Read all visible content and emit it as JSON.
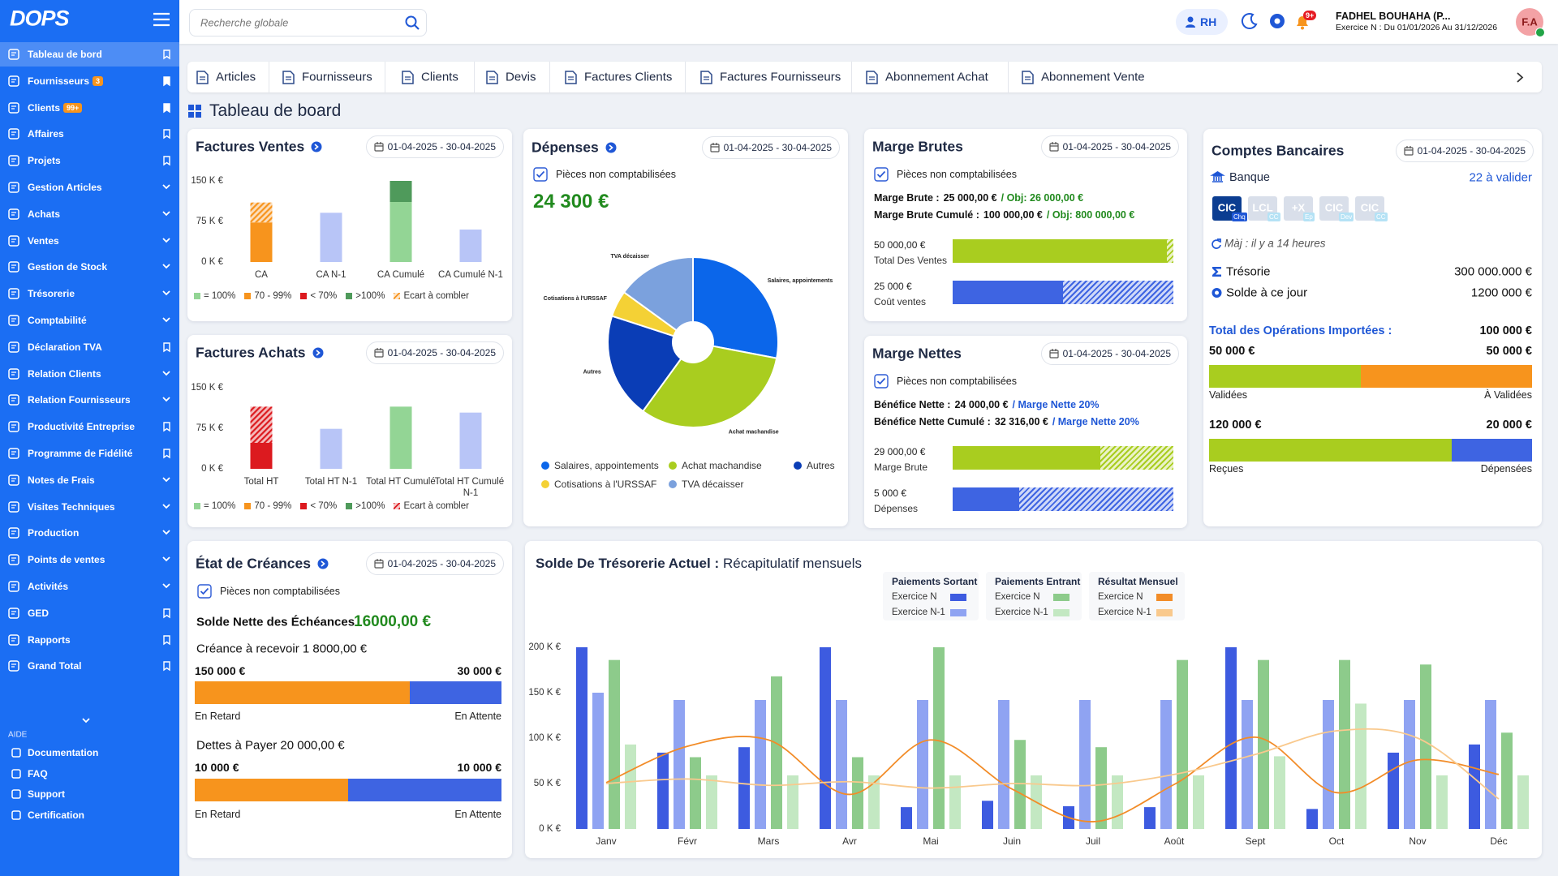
{
  "sidebar": {
    "logo": "DOPS",
    "items": [
      {
        "label": "Tableau de bord",
        "active": true
      },
      {
        "label": "Fournisseurs",
        "badge": "3",
        "pinned": true
      },
      {
        "label": "Clients",
        "badge": "99+",
        "pinned": true
      },
      {
        "label": "Affaires"
      },
      {
        "label": "Projets"
      },
      {
        "label": "Gestion Articles",
        "expandable": true
      },
      {
        "label": "Achats",
        "expandable": true
      },
      {
        "label": "Ventes",
        "expandable": true
      },
      {
        "label": "Gestion de Stock",
        "expandable": true
      },
      {
        "label": "Trésorerie",
        "expandable": true
      },
      {
        "label": "Comptabilité",
        "expandable": true
      },
      {
        "label": "Déclaration TVA"
      },
      {
        "label": "Relation Clients",
        "expandable": true
      },
      {
        "label": "Relation Fournisseurs",
        "expandable": true
      },
      {
        "label": "Productivité Entreprise"
      },
      {
        "label": "Programme de Fidélité"
      },
      {
        "label": "Notes de Frais",
        "expandable": true
      },
      {
        "label": "Visites Techniques",
        "expandable": true
      },
      {
        "label": "Production",
        "expandable": true
      },
      {
        "label": "Points de ventes",
        "expandable": true
      },
      {
        "label": "Activités",
        "expandable": true
      },
      {
        "label": "GED"
      },
      {
        "label": "Rapports"
      },
      {
        "label": "Grand Total"
      }
    ],
    "help_title": "AIDE",
    "help_items": [
      "Documentation",
      "FAQ",
      "Support",
      "Certification"
    ]
  },
  "topbar": {
    "search_placeholder": "Recherche globale",
    "rh": "RH",
    "notifications": "9+",
    "user": "FADHEL BOUHAHA (P...",
    "period": "Exercice N : Du 01/01/2026 Au 31/12/2026",
    "avatar": "F.A"
  },
  "tabs": [
    "Articles",
    "Fournisseurs",
    "Clients",
    "Devis",
    "Factures Clients",
    "Factures Fournisseurs",
    "Abonnement Achat",
    "Abonnement Vente"
  ],
  "page_title": "Tableau de board",
  "chart_data": [
    {
      "type": "bar",
      "stacked": true,
      "grid": false,
      "title": "Factures Ventes",
      "date": "01-04-2025 - 30-04-2025",
      "categories": [
        "CA",
        "CA N-1",
        "CA Cumulé",
        "CA Cumulé N-1"
      ],
      "ylim": [
        0,
        150
      ],
      "yticks": [
        {
          "value": 0,
          "label": "0 K €"
        },
        {
          "value": 75,
          "label": "75 K €"
        },
        {
          "value": 150,
          "label": "150 K €"
        }
      ],
      "series": [
        {
          "name": "= 100%",
          "color": "#93d595",
          "values": [
            null,
            null,
            111,
            null
          ]
        },
        {
          "name": "70 - 99%",
          "color": "#f7941d",
          "values": [
            73,
            null,
            null,
            null
          ]
        },
        {
          "name": "< 70%",
          "color": "#dc1a1f",
          "values": [
            null,
            null,
            null,
            null
          ]
        },
        {
          "name": ">100%",
          "color": "#4f9a5b",
          "values": [
            null,
            null,
            39,
            null
          ]
        },
        {
          "name": "Ecart à combler",
          "color": "#f7941d",
          "pattern": "hatch",
          "values": [
            37,
            null,
            null,
            null
          ]
        },
        {
          "color": "#b8c5f7",
          "values": [
            null,
            91,
            null,
            60
          ]
        }
      ]
    },
    {
      "type": "bar",
      "stacked": true,
      "grid": false,
      "title": "Factures Achats",
      "date": "01-04-2025 - 30-04-2025",
      "categories": [
        "Total HT",
        "Total HT N-1",
        "Total HT Cumulé",
        "Total HT Cumulé N-1"
      ],
      "ylim": [
        0,
        150
      ],
      "yticks": [
        {
          "value": 0,
          "label": "0 K €"
        },
        {
          "value": 75,
          "label": "75 K €"
        },
        {
          "value": 150,
          "label": "150 K €"
        }
      ],
      "series": [
        {
          "name": "= 100%",
          "color": "#93d595",
          "values": [
            null,
            null,
            115,
            null
          ]
        },
        {
          "name": "70 - 99%",
          "color": "#f7941d",
          "values": [
            null,
            null,
            null,
            null
          ]
        },
        {
          "name": "< 70%",
          "color": "#dc1a1f",
          "values": [
            48,
            null,
            null,
            null
          ]
        },
        {
          "name": ">100%",
          "color": "#4f9a5b",
          "values": [
            null,
            null,
            null,
            null
          ]
        },
        {
          "name": "Ecart à combler",
          "color": "#dc1a1f",
          "pattern": "hatch",
          "values": [
            67,
            null,
            null,
            null
          ]
        },
        {
          "color": "#b8c5f7",
          "values": [
            null,
            74,
            null,
            104
          ]
        }
      ]
    },
    {
      "type": "pie",
      "title": "Dépenses",
      "date": "01-04-2025 - 30-04-2025",
      "checkbox": "Pièces non comptabilisées",
      "total": "24 300 €",
      "categories": [
        "Salaires, appointements",
        "Achat machandise",
        "Autres",
        "Cotisations à l'URSSAF",
        "TVA décaisser"
      ],
      "values": [
        28,
        32,
        20,
        5,
        15
      ],
      "colors": [
        "#0b66ea",
        "#a9cd1f",
        "#0a3db6",
        "#f4d135",
        "#7ba1dd"
      ]
    },
    {
      "type": "bar",
      "stacked": false,
      "grid": false,
      "title": "Solde De Trésorerie Actuel :",
      "subtitle": "Récapitulatif mensuels",
      "categories": [
        "Janv",
        "Févr",
        "Mars",
        "Avr",
        "Mai",
        "Juin",
        "Juil",
        "Août",
        "Sept",
        "Oct",
        "Nov",
        "Déc"
      ],
      "ylim": [
        0,
        200
      ],
      "yticks": [
        {
          "value": 0,
          "label": "0 K €"
        },
        {
          "value": 50,
          "label": "50 K €"
        },
        {
          "value": 100,
          "label": "100 K €"
        },
        {
          "value": 150,
          "label": "150 K €"
        },
        {
          "value": 200,
          "label": "200 K €"
        }
      ],
      "series": [
        {
          "group": "Paiements Sortant",
          "name": "Exercice N",
          "color": "#3d5be0",
          "values": [
            200,
            84,
            90,
            200,
            24,
            31,
            25,
            24,
            200,
            22,
            84,
            93
          ]
        },
        {
          "group": "Paiements Sortant",
          "name": "Exercice N-1",
          "color": "#8fa3f2",
          "values": [
            150,
            142,
            142,
            142,
            142,
            142,
            142,
            142,
            142,
            142,
            142,
            142
          ]
        },
        {
          "group": "Paiements Entrant",
          "name": "Exercice N",
          "color": "#8dcb8b",
          "values": [
            186,
            79,
            168,
            79,
            200,
            98,
            90,
            186,
            186,
            186,
            181,
            106
          ]
        },
        {
          "group": "Paiements Entrant",
          "name": "Exercice N-1",
          "color": "#c3e8c2",
          "values": [
            93,
            59,
            59,
            59,
            59,
            59,
            59,
            59,
            80,
            138,
            59,
            59
          ]
        },
        {
          "group": "Résultat Mensuel",
          "name": "Exercice N",
          "type": "line",
          "color": "#f28c28",
          "values": [
            51,
            91,
            98,
            38,
            98,
            44,
            8,
            49,
            101,
            40,
            76,
            60
          ]
        },
        {
          "group": "Résultat Mensuel",
          "name": "Exercice N-1",
          "type": "line",
          "color": "#f9c98d",
          "values": [
            50,
            55,
            48,
            52,
            45,
            50,
            48,
            60,
            82,
            108,
            100,
            33
          ]
        }
      ]
    }
  ],
  "marge_brutes": {
    "title": "Marge Brutes",
    "date": "01-04-2025 - 30-04-2025",
    "checkbox": "Pièces non comptabilisées",
    "accent": "#218a1e",
    "lines": [
      {
        "label": "Marge Brute :",
        "value": "25 000,00 €",
        "objective": "/ Obj: 26 000,00 €"
      },
      {
        "label": "Marge Brute Cumulé  :",
        "value": "100 000,00 €",
        "objective": "/ Obj: 800 000,00 €"
      }
    ],
    "bars": [
      {
        "amount": "50 000,00 €",
        "label": "Total Des Ventes",
        "value": 97,
        "color": "#a9cd1f"
      },
      {
        "amount": "25 000 €",
        "label": "Coût ventes",
        "value": 50,
        "color": "#3e64e2"
      }
    ]
  },
  "marge_nettes": {
    "title": "Marge Nettes",
    "date": "01-04-2025 - 30-04-2025",
    "checkbox": "Pièces non comptabilisées",
    "accent": "#1f57d6",
    "lines": [
      {
        "label": "Bénéfice Nette :",
        "value": "24 000,00 €",
        "objective": "/ Marge Nette 20%"
      },
      {
        "label": "Bénéfice Nette Cumulé :",
        "value": "32 316,00 €",
        "objective": "/ Marge Nette 20%"
      }
    ],
    "bars": [
      {
        "amount": "29 000,00 €",
        "label": "Marge Brute",
        "value": 67,
        "color": "#a9cd1f"
      },
      {
        "amount": "5 000 €",
        "label": "Dépenses",
        "value": 30,
        "color": "#3e64e2"
      }
    ]
  },
  "comptes": {
    "title": "Comptes Bancaires",
    "date": "01-04-2025 - 30-04-2025",
    "bank_label": "Banque",
    "pending": "22 à valider",
    "accounts": [
      {
        "logo": "CIC",
        "tag": "Chq",
        "active": true
      },
      {
        "logo": "LCL",
        "tag": "CC"
      },
      {
        "logo": "+X",
        "tag": "Ep"
      },
      {
        "logo": "CIC",
        "tag": "Dev"
      },
      {
        "logo": "CIC",
        "tag": "CC"
      }
    ],
    "updated": "Màj : il y a 14 heures",
    "rows": [
      {
        "label": "Trésorie",
        "value": "300 000.000 €"
      },
      {
        "label": "Solde à ce jour",
        "value": "1200 000 €"
      }
    ],
    "imports_label": "Total des Opérations Importées :",
    "imports_total": "100 000 €",
    "splits": [
      {
        "left": "50 000 €",
        "right": "50 000 €",
        "value": 47,
        "left_label": "Validées",
        "right_label": "À Validées",
        "left_color": "#a9cd1f",
        "right_color": "#f7941d"
      },
      {
        "left": "120 000 €",
        "right": "20 000 €",
        "value": 75,
        "left_label": "Reçues",
        "right_label": "Dépensées",
        "left_color": "#a9cd1f",
        "right_color": "#3e64e2"
      }
    ]
  },
  "creances": {
    "title": "État de Créances",
    "date": "01-04-2025 - 30-04-2025",
    "checkbox": "Pièces non comptabilisées",
    "balance_label": "Solde Nette des Échéances",
    "balance": "16000,00 €",
    "splits": [
      {
        "heading": "Créance à recevoir 1 8000,00 €",
        "left": "150 000 €",
        "right": "30 000 €",
        "value": 70,
        "left_label": "En Retard",
        "right_label": "En Attente",
        "left_color": "#f7941d",
        "right_color": "#3e64e2"
      },
      {
        "heading": "Dettes à Payer 20 000,00 €",
        "left": "10 000 €",
        "right": "10 000 €",
        "value": 50,
        "left_label": "En Retard",
        "right_label": "En Attente",
        "left_color": "#f7941d",
        "right_color": "#3e64e2"
      }
    ]
  }
}
